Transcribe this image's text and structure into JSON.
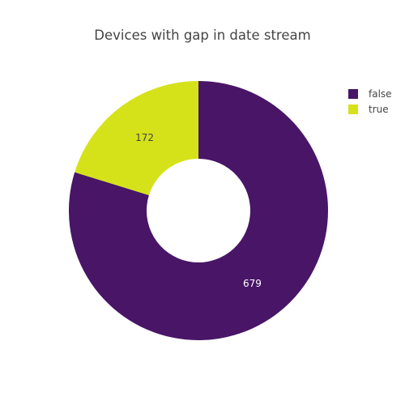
{
  "chart_data": {
    "type": "pie",
    "title": "Devices with gap in date stream",
    "hole": 0.4,
    "labels": [
      "false",
      "true"
    ],
    "values": [
      679,
      172
    ],
    "colors": [
      "#481567",
      "#d5e21a"
    ],
    "label_text_colors": [
      "#ffffff",
      "#444444"
    ],
    "legend_position": "right",
    "direction": "clockwise",
    "start": "top"
  }
}
